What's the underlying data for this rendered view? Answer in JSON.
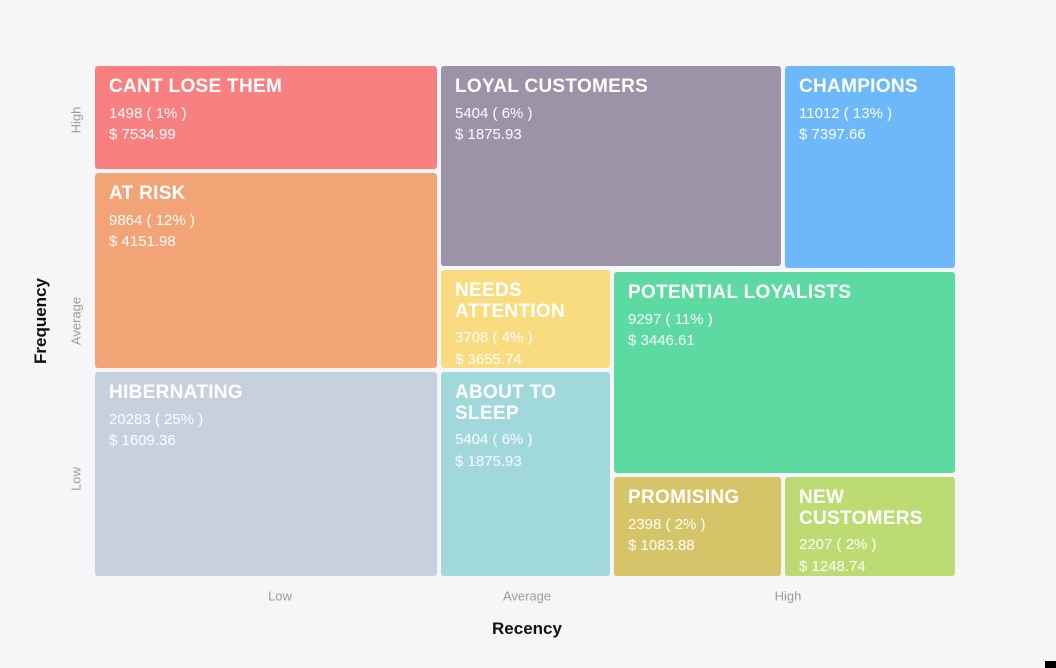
{
  "chart_data": {
    "type": "heatmap",
    "subtype": "rfm-segment-treemap",
    "title": "",
    "x_axis": {
      "label": "Recency",
      "ticks": [
        "Low",
        "Average",
        "High"
      ]
    },
    "y_axis": {
      "label": "Frequency",
      "ticks": [
        "High",
        "Average",
        "Low"
      ]
    },
    "legend": "none",
    "grid": "off",
    "segments": [
      {
        "name": "CANT LOSE THEM",
        "count": 1498,
        "percent": 1,
        "monetary": 7534.99,
        "count_label": "1498 ( 1% )",
        "monetary_label": "$ 7534.99",
        "color": "#F98080",
        "recency": "Low",
        "frequency": "High"
      },
      {
        "name": "LOYAL CUSTOMERS",
        "count": 5404,
        "percent": 6,
        "monetary": 1875.93,
        "count_label": "5404 ( 6% )",
        "monetary_label": "$ 1875.93",
        "color": "#9C93A9",
        "recency": "Average",
        "frequency": "High"
      },
      {
        "name": "CHAMPIONS",
        "count": 11012,
        "percent": 13,
        "monetary": 7397.66,
        "count_label": "11012 ( 13% )",
        "monetary_label": "$ 7397.66",
        "color": "#6CB8F8",
        "recency": "High",
        "frequency": "High"
      },
      {
        "name": "AT RISK",
        "count": 9864,
        "percent": 12,
        "monetary": 4151.98,
        "count_label": "9864 ( 12% )",
        "monetary_label": "$ 4151.98",
        "color": "#F2A476",
        "recency": "Low",
        "frequency": "Average"
      },
      {
        "name": "NEEDS ATTENTION",
        "count": 3708,
        "percent": 4,
        "monetary": 3655.74,
        "count_label": "3708 ( 4% )",
        "monetary_label": "$ 3655.74",
        "color": "#F9DC80",
        "recency": "Average",
        "frequency": "Average"
      },
      {
        "name": "POTENTIAL LOYALISTS",
        "count": 9297,
        "percent": 11,
        "monetary": 3446.61,
        "count_label": "9297 ( 11% )",
        "monetary_label": "$ 3446.61",
        "color": "#5DD9A2",
        "recency": "High",
        "frequency": "Average"
      },
      {
        "name": "HIBERNATING",
        "count": 20283,
        "percent": 25,
        "monetary": 1609.36,
        "count_label": "20283 ( 25% )",
        "monetary_label": "$ 1609.36",
        "color": "#C7D0DF",
        "recency": "Low",
        "frequency": "Low"
      },
      {
        "name": "ABOUT TO SLEEP",
        "count": 5404,
        "percent": 6,
        "monetary": 1875.93,
        "count_label": "5404 ( 6% )",
        "monetary_label": "$ 1875.93",
        "color": "#A0D8DB",
        "recency": "Average",
        "frequency": "Low"
      },
      {
        "name": "PROMISING",
        "count": 2398,
        "percent": 2,
        "monetary": 1083.88,
        "count_label": "2398 ( 2% )",
        "monetary_label": "$ 1083.88",
        "color": "#D5C468",
        "recency": "High",
        "frequency": "Low"
      },
      {
        "name": "NEW CUSTOMERS",
        "count": 2207,
        "percent": 2,
        "monetary": 1248.74,
        "count_label": "2207 ( 2% )",
        "monetary_label": "$ 1248.74",
        "color": "#BCDC73",
        "recency": "High",
        "frequency": "Low"
      }
    ],
    "colors": {
      "background": "#F6F5F7",
      "axis_title": "#111111",
      "tick_label": "#9C9C9C"
    },
    "artifact": {
      "bottom_right_mark_color": "#000000"
    }
  }
}
